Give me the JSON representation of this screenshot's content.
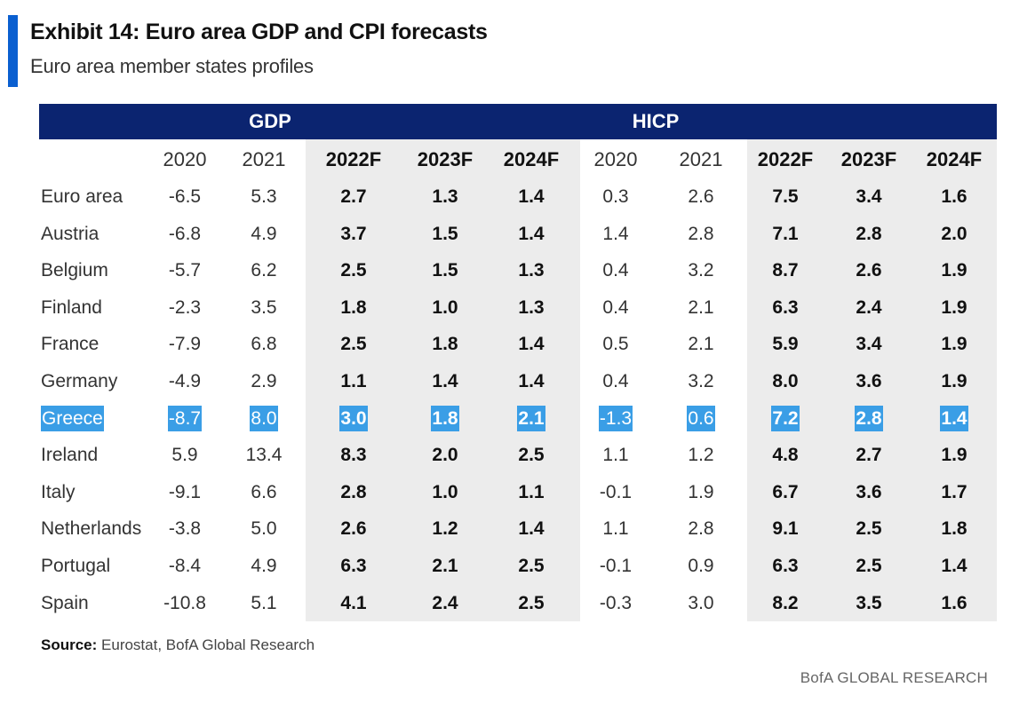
{
  "header": {
    "title": "Exhibit 14: Euro area GDP and CPI forecasts",
    "subtitle": "Euro area member states profiles"
  },
  "chart_data": {
    "type": "table",
    "groups": [
      {
        "label": "GDP"
      },
      {
        "label": "HICP"
      }
    ],
    "columns": [
      "2020",
      "2021",
      "2022F",
      "2023F",
      "2024F",
      "2020",
      "2021",
      "2022F",
      "2023F",
      "2024F"
    ],
    "rows": [
      {
        "label": "Euro area",
        "values": [
          "-6.5",
          "5.3",
          "2.7",
          "1.3",
          "1.4",
          "0.3",
          "2.6",
          "7.5",
          "3.4",
          "1.6"
        ]
      },
      {
        "label": "Austria",
        "values": [
          "-6.8",
          "4.9",
          "3.7",
          "1.5",
          "1.4",
          "1.4",
          "2.8",
          "7.1",
          "2.8",
          "2.0"
        ]
      },
      {
        "label": "Belgium",
        "values": [
          "-5.7",
          "6.2",
          "2.5",
          "1.5",
          "1.3",
          "0.4",
          "3.2",
          "8.7",
          "2.6",
          "1.9"
        ]
      },
      {
        "label": "Finland",
        "values": [
          "-2.3",
          "3.5",
          "1.8",
          "1.0",
          "1.3",
          "0.4",
          "2.1",
          "6.3",
          "2.4",
          "1.9"
        ]
      },
      {
        "label": "France",
        "values": [
          "-7.9",
          "6.8",
          "2.5",
          "1.8",
          "1.4",
          "0.5",
          "2.1",
          "5.9",
          "3.4",
          "1.9"
        ]
      },
      {
        "label": "Germany",
        "values": [
          "-4.9",
          "2.9",
          "1.1",
          "1.4",
          "1.4",
          "0.4",
          "3.2",
          "8.0",
          "3.6",
          "1.9"
        ]
      },
      {
        "label": "Greece",
        "values": [
          "-8.7",
          "8.0",
          "3.0",
          "1.8",
          "2.1",
          "-1.3",
          "0.6",
          "7.2",
          "2.8",
          "1.4"
        ],
        "selected": true
      },
      {
        "label": "Ireland",
        "values": [
          "5.9",
          "13.4",
          "8.3",
          "2.0",
          "2.5",
          "1.1",
          "1.2",
          "4.8",
          "2.7",
          "1.9"
        ]
      },
      {
        "label": "Italy",
        "values": [
          "-9.1",
          "6.6",
          "2.8",
          "1.0",
          "1.1",
          "-0.1",
          "1.9",
          "6.7",
          "3.6",
          "1.7"
        ]
      },
      {
        "label": "Netherlands",
        "values": [
          "-3.8",
          "5.0",
          "2.6",
          "1.2",
          "1.4",
          "1.1",
          "2.8",
          "9.1",
          "2.5",
          "1.8"
        ]
      },
      {
        "label": "Portugal",
        "values": [
          "-8.4",
          "4.9",
          "6.3",
          "2.1",
          "2.5",
          "-0.1",
          "0.9",
          "6.3",
          "2.5",
          "1.4"
        ]
      },
      {
        "label": "Spain",
        "values": [
          "-10.8",
          "5.1",
          "4.1",
          "2.4",
          "2.5",
          "-0.3",
          "3.0",
          "8.2",
          "3.5",
          "1.6"
        ]
      }
    ]
  },
  "footer": {
    "source_label": "Source:",
    "source_text": " Eurostat, BofA Global Research",
    "brand": "BofA GLOBAL RESEARCH"
  },
  "colors": {
    "header_band": "#0b2470",
    "accent": "#0a5fd0",
    "forecast_shade": "#ececec",
    "selection": "#3a9ee6"
  }
}
